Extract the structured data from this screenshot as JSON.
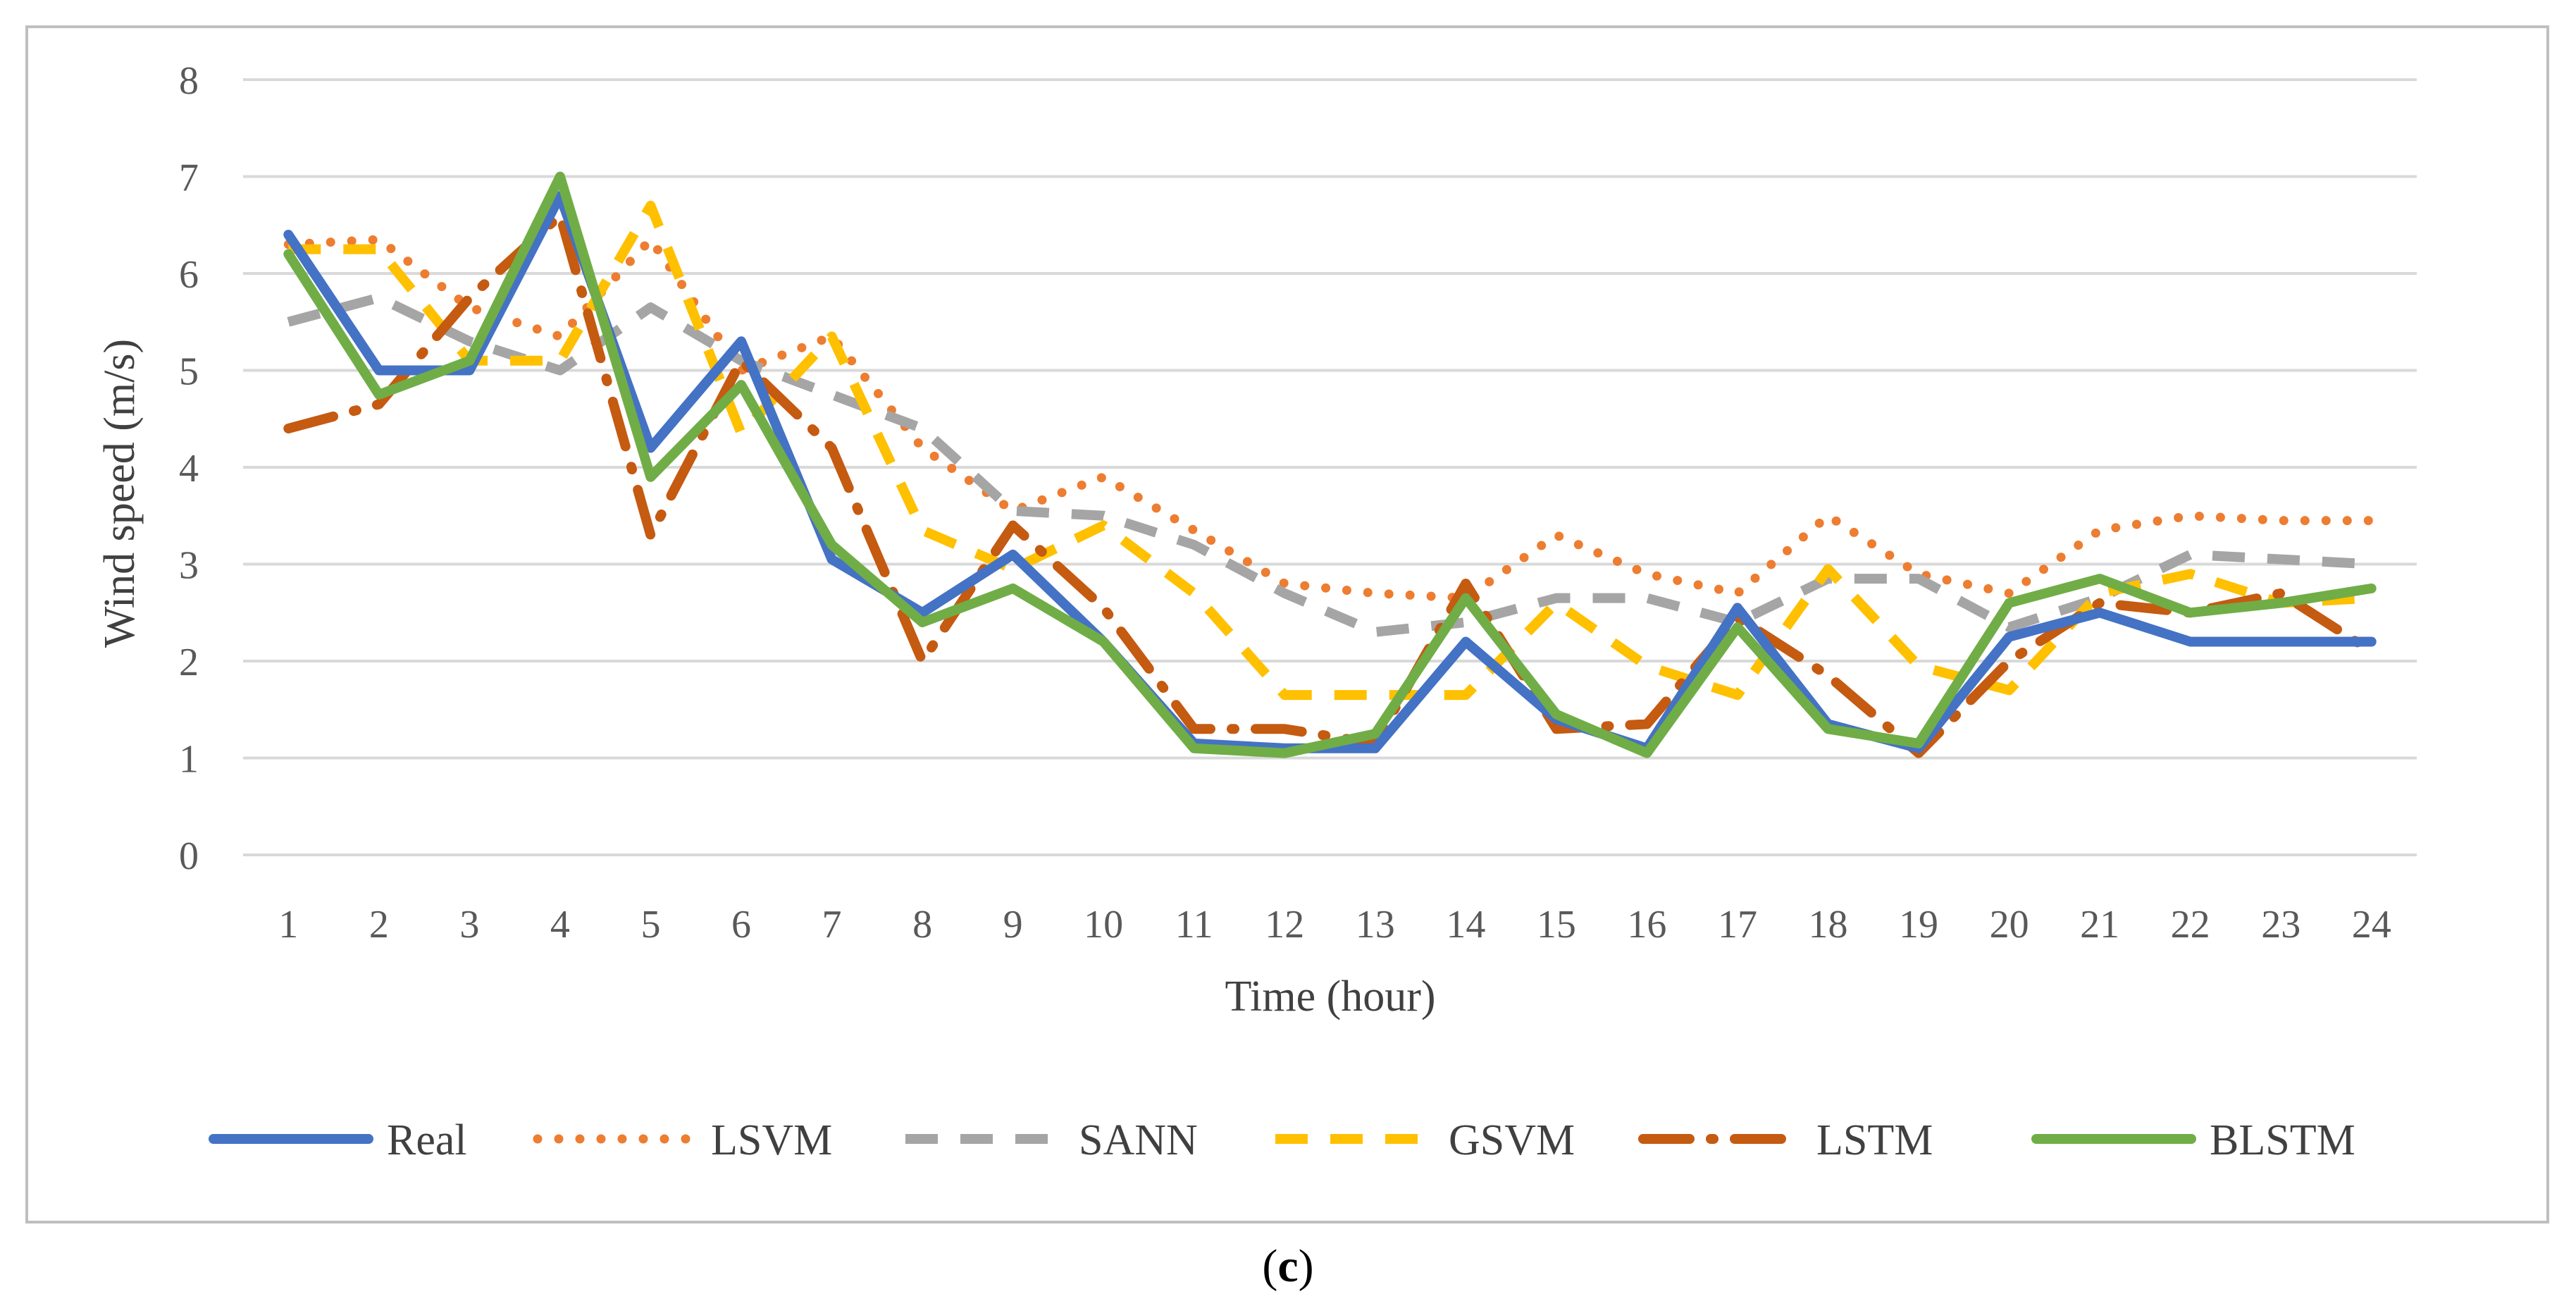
{
  "chart_data": {
    "type": "line",
    "title": "",
    "xlabel": "Time (hour)",
    "ylabel": "Wind speed (m/s)",
    "caption_letter": "c",
    "x": [
      1,
      2,
      3,
      4,
      5,
      6,
      7,
      8,
      9,
      10,
      11,
      12,
      13,
      14,
      15,
      16,
      17,
      18,
      19,
      20,
      21,
      22,
      23,
      24
    ],
    "ylim": [
      0,
      8
    ],
    "yticks": [
      0,
      1,
      2,
      3,
      4,
      5,
      6,
      7,
      8
    ],
    "grid": true,
    "legend_position": "bottom",
    "series": [
      {
        "name": "Real",
        "color": "#4472C4",
        "dash": "solid",
        "values": [
          6.4,
          5.0,
          5.0,
          6.8,
          4.2,
          5.3,
          3.05,
          2.5,
          3.1,
          2.2,
          1.15,
          1.1,
          1.1,
          2.2,
          1.4,
          1.1,
          2.55,
          1.35,
          1.1,
          2.25,
          2.5,
          2.2,
          2.2,
          2.2
        ]
      },
      {
        "name": "LSVM",
        "color": "#ED7D31",
        "dash": "dotted",
        "values": [
          6.3,
          6.35,
          5.65,
          5.35,
          6.35,
          5.0,
          5.35,
          4.2,
          3.55,
          3.9,
          3.35,
          2.8,
          2.7,
          2.65,
          3.3,
          2.9,
          2.7,
          3.5,
          2.9,
          2.7,
          3.35,
          3.5,
          3.45,
          3.45
        ]
      },
      {
        "name": "SANN",
        "color": "#A5A5A5",
        "dash": "dashed",
        "values": [
          5.5,
          5.75,
          5.3,
          5.0,
          5.65,
          5.1,
          4.75,
          4.4,
          3.55,
          3.5,
          3.2,
          2.7,
          2.3,
          2.4,
          2.65,
          2.65,
          2.4,
          2.85,
          2.85,
          2.35,
          2.65,
          3.1,
          3.05,
          3.0
        ]
      },
      {
        "name": "GSVM",
        "color": "#FFC000",
        "dash": "dashed",
        "values": [
          6.25,
          6.25,
          5.1,
          5.1,
          6.7,
          4.35,
          5.35,
          3.35,
          2.95,
          3.4,
          2.7,
          1.65,
          1.65,
          1.65,
          2.6,
          1.95,
          1.65,
          2.95,
          1.95,
          1.7,
          2.7,
          2.9,
          2.6,
          2.65
        ]
      },
      {
        "name": "LSTM",
        "color": "#C55A11",
        "dash": "dashdot",
        "values": [
          4.4,
          4.65,
          5.75,
          6.6,
          3.3,
          5.1,
          4.2,
          2.0,
          3.4,
          2.55,
          1.3,
          1.3,
          1.15,
          2.8,
          1.3,
          1.35,
          2.45,
          1.85,
          1.05,
          2.0,
          2.6,
          2.5,
          2.7,
          2.1
        ]
      },
      {
        "name": "BLSTM",
        "color": "#70AD47",
        "dash": "solid",
        "values": [
          6.2,
          4.75,
          5.1,
          7.0,
          3.9,
          4.85,
          3.2,
          2.4,
          2.75,
          2.2,
          1.1,
          1.05,
          1.25,
          2.65,
          1.45,
          1.05,
          2.35,
          1.3,
          1.15,
          2.6,
          2.85,
          2.5,
          2.6,
          2.75
        ]
      }
    ]
  }
}
